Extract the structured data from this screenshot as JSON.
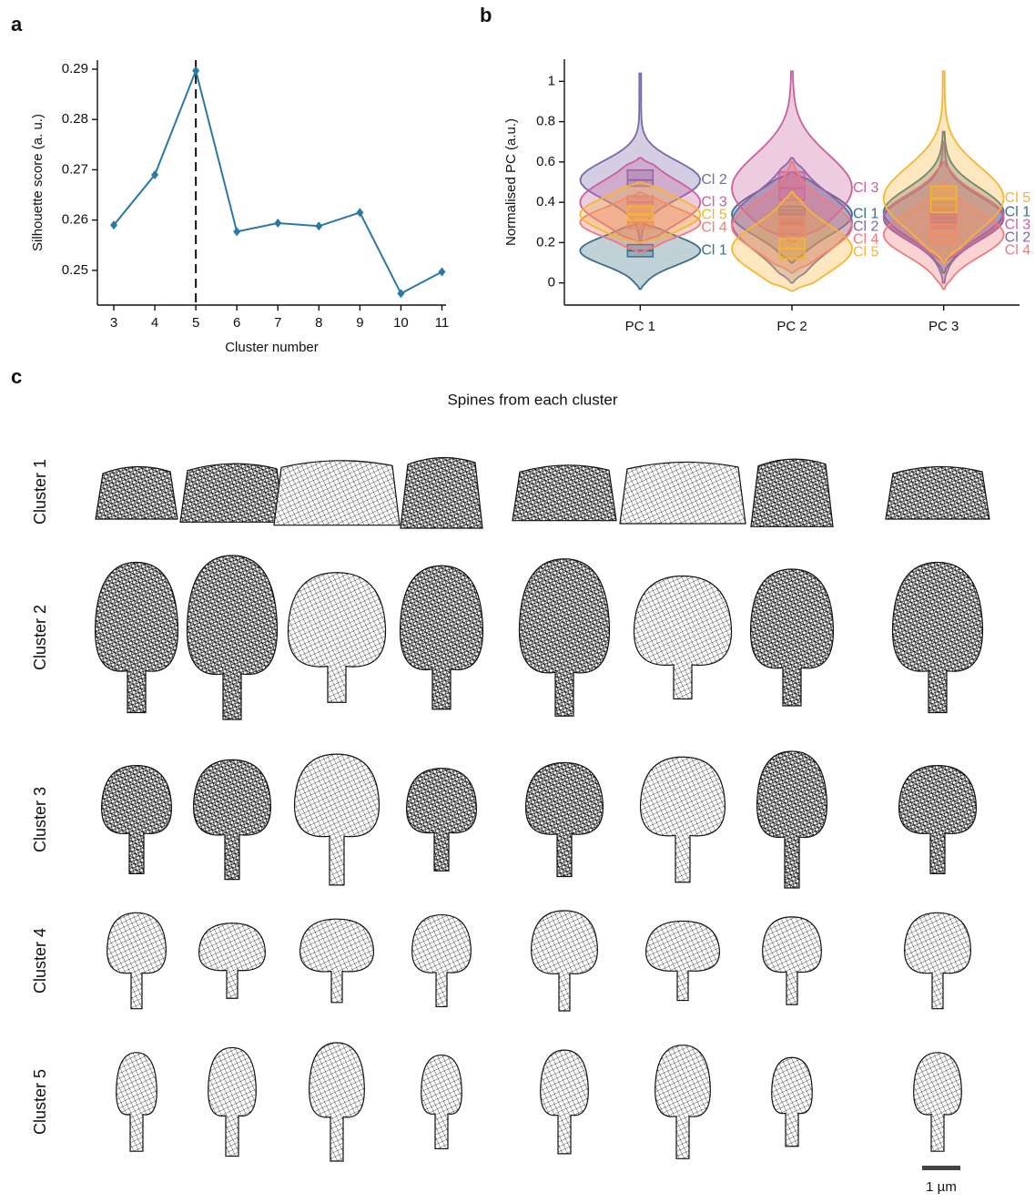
{
  "panel_labels": [
    "a",
    "b",
    "c"
  ],
  "chart_data": [
    {
      "type": "line",
      "xlabel": "Cluster number",
      "ylabel": "Silhouette score (a. u.)",
      "x": [
        3,
        4,
        5,
        6,
        7,
        8,
        9,
        10,
        11
      ],
      "values": [
        0.259,
        0.269,
        0.2897,
        0.2577,
        0.2594,
        0.2588,
        0.2615,
        0.2454,
        0.2497
      ],
      "color": "#2a78a6",
      "vline": 5,
      "xlim": [
        2.6,
        11.1
      ],
      "xticks": [
        3,
        4,
        5,
        6,
        7,
        8,
        9,
        10,
        11
      ],
      "ylim": [
        0.2431,
        0.2918
      ],
      "yticks": [
        0.25,
        0.26,
        0.27,
        0.28,
        0.29
      ]
    },
    {
      "type": "violin",
      "ylabel": "Normalised PC (a.u.)",
      "categories": [
        "PC 1",
        "PC 2",
        "PC 3"
      ],
      "ylim": [
        -0.11,
        1.11
      ],
      "yticks": [
        0,
        0.2,
        0.4,
        0.6,
        0.8,
        1
      ],
      "series": [
        {
          "name": "Cl 1",
          "color": "#3b6f86",
          "min": [
            -0.03,
            0.1,
            0.05
          ],
          "q1": [
            0.13,
            0.29,
            0.3
          ],
          "median": [
            0.16,
            0.34,
            0.35
          ],
          "q3": [
            0.19,
            0.38,
            0.4
          ],
          "max": [
            0.3,
            0.55,
            0.75
          ]
        },
        {
          "name": "Cl 2",
          "color": "#7a68a9",
          "min": [
            0.2,
            0.0,
            0.0
          ],
          "q1": [
            0.48,
            0.24,
            0.27
          ],
          "median": [
            0.51,
            0.3,
            0.32
          ],
          "q3": [
            0.56,
            0.36,
            0.36
          ],
          "max": [
            1.04,
            0.62,
            0.7
          ]
        },
        {
          "name": "Cl 3",
          "color": "#c95f9e",
          "min": [
            0.2,
            0.2,
            0.1
          ],
          "q1": [
            0.34,
            0.41,
            0.28
          ],
          "median": [
            0.4,
            0.47,
            0.33
          ],
          "q3": [
            0.43,
            0.55,
            0.37
          ],
          "max": [
            0.62,
            1.05,
            0.6
          ]
        },
        {
          "name": "Cl 4",
          "color": "#f07a7c",
          "min": [
            0.15,
            0.05,
            -0.03
          ],
          "q1": [
            0.27,
            0.23,
            0.2
          ],
          "median": [
            0.3,
            0.28,
            0.24
          ],
          "q3": [
            0.33,
            0.33,
            0.29
          ],
          "max": [
            0.45,
            0.6,
            0.5
          ]
        },
        {
          "name": "Cl 5",
          "color": "#f6b534",
          "min": [
            0.2,
            -0.04,
            0.1
          ],
          "q1": [
            0.31,
            0.12,
            0.35
          ],
          "median": [
            0.34,
            0.17,
            0.42
          ],
          "q3": [
            0.38,
            0.22,
            0.48
          ],
          "max": [
            0.5,
            0.45,
            1.05
          ]
        }
      ]
    }
  ],
  "panel_c": {
    "title": "Spines from each cluster",
    "rows": [
      "Cluster 1",
      "Cluster 2",
      "Cluster 3",
      "Cluster 4",
      "Cluster 5"
    ],
    "scale_bar": "1 µm"
  }
}
